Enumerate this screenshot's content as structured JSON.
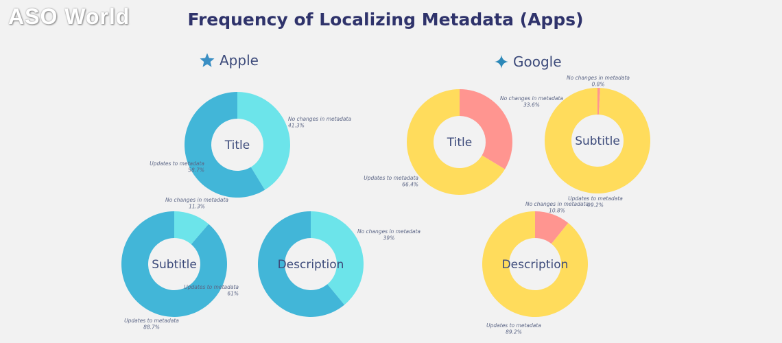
{
  "brand": {
    "logo_text": "ASO World"
  },
  "title": "Frequency of Localizing Metadata (Apps)",
  "sections": {
    "apple": {
      "label": "Apple",
      "icon": "star-icon",
      "icon_color": "#3b8fc4"
    },
    "google": {
      "label": "Google",
      "icon": "four-point-star-icon",
      "icon_color": "#2c88b8"
    }
  },
  "colors": {
    "apple_updates": "#42b6d8",
    "apple_no_changes": "#6ce4ea",
    "google_updates": "#ffdc5c",
    "google_no_changes": "#ff9590",
    "background": "#f2f2f2"
  },
  "chart_data": [
    {
      "type": "pie",
      "group": "Apple",
      "center_label": "Title",
      "slices": [
        {
          "label": "No changes in metadata",
          "value": 41.3,
          "display": "41.3%"
        },
        {
          "label": "Updates to metadata",
          "value": 58.7,
          "display": "58.7%"
        }
      ]
    },
    {
      "type": "pie",
      "group": "Apple",
      "center_label": "Subtitle",
      "slices": [
        {
          "label": "No changes in metadata",
          "value": 11.3,
          "display": "11.3%"
        },
        {
          "label": "Updates to metadata",
          "value": 88.7,
          "display": "88.7%"
        }
      ]
    },
    {
      "type": "pie",
      "group": "Apple",
      "center_label": "Description",
      "slices": [
        {
          "label": "No changes in metadata",
          "value": 39,
          "display": "39%"
        },
        {
          "label": "Updates to metadata",
          "value": 61,
          "display": "61%"
        }
      ]
    },
    {
      "type": "pie",
      "group": "Google",
      "center_label": "Title",
      "slices": [
        {
          "label": "No changes in metadata",
          "value": 33.6,
          "display": "33.6%"
        },
        {
          "label": "Updates to metadata",
          "value": 66.4,
          "display": "66.4%"
        }
      ]
    },
    {
      "type": "pie",
      "group": "Google",
      "center_label": "Subtitle",
      "slices": [
        {
          "label": "No changes in metadata",
          "value": 0.8,
          "display": "0.8%"
        },
        {
          "label": "Updates to metadata",
          "value": 99.2,
          "display": "99.2%"
        }
      ]
    },
    {
      "type": "pie",
      "group": "Google",
      "center_label": "Description",
      "slices": [
        {
          "label": "No changes in metadata",
          "value": 10.8,
          "display": "10.8%"
        },
        {
          "label": "Updates to metadata",
          "value": 89.2,
          "display": "89.2%"
        }
      ]
    }
  ]
}
